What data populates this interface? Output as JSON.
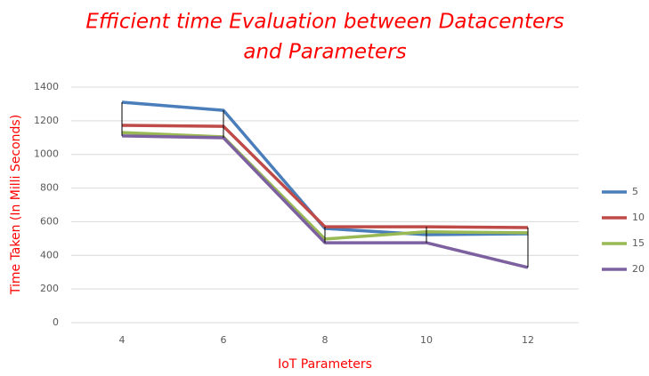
{
  "chart_data": {
    "type": "line",
    "title": [
      "Efficient time Evaluation between Datacenters",
      "and Parameters"
    ],
    "x_label": "IoT Parameters",
    "y_label": "Time Taken (In Milli Seconds)",
    "categories": [
      "4",
      "6",
      "8",
      "10",
      "12"
    ],
    "series": [
      {
        "name": "5",
        "color": "#4a7ebb",
        "values": [
          1310,
          1262,
          560,
          523,
          528
        ]
      },
      {
        "name": "10",
        "color": "#be4b48",
        "values": [
          1173,
          1167,
          570,
          570,
          565
        ]
      },
      {
        "name": "15",
        "color": "#98b954",
        "values": [
          1130,
          1104,
          497,
          540,
          534
        ]
      },
      {
        "name": "20",
        "color": "#7d60a0",
        "values": [
          1110,
          1099,
          475,
          475,
          328
        ]
      }
    ],
    "ylim": [
      0,
      1400
    ],
    "yticks": [
      0,
      200,
      400,
      600,
      800,
      1000,
      1200,
      1400
    ],
    "grid": true,
    "high_low_lines": true,
    "legend": "right"
  }
}
